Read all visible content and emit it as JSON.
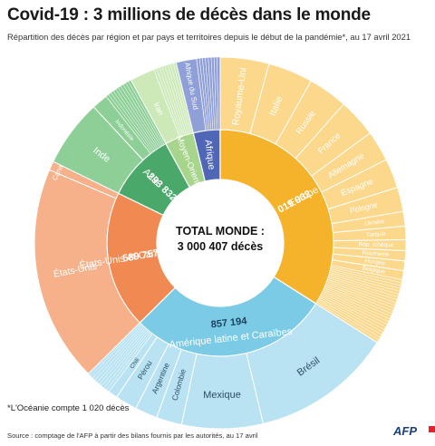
{
  "header": {
    "title": "Covid-19 : 3 millions de décès dans le monde",
    "subtitle": "Répartition des décès par région et par pays et territoires depuis le début de la pandémie*, au 17 avril 2021"
  },
  "footer": {
    "note": "*L'Océanie compte 1 020 décès",
    "source": "Source : comptage de l'AFP à partir des bilans fournis par les autorités, au 17 avril",
    "logo": "AFP"
  },
  "colors": {
    "europe_inner": "#f5b32b",
    "europe_outer": "#fcd88c",
    "latam_inner": "#7ccbe6",
    "latam_outer": "#b9e3f3",
    "usca_inner": "#f08a52",
    "usca_outer": "#f6b08a",
    "asia_inner": "#4aa86a",
    "asia_outer": "#8ecf98",
    "mideast_inner": "#a6d58b",
    "mideast_outer": "#cde9b8",
    "africa_inner": "#5067b8",
    "africa_outer": "#8f9fd8",
    "background": "#ffffff"
  },
  "chart_data": {
    "type": "sunburst",
    "center_label": [
      "TOTAL MONDE :",
      "3 000 407 décès"
    ],
    "total": 3000407,
    "regions": [
      {
        "name": "Europe",
        "value_label": "1 019 932",
        "value": 1019932,
        "key": "europe",
        "countries": [
          {
            "name": "Royaume-Uni",
            "value": 127260
          },
          {
            "name": "Italie",
            "value": 116927
          },
          {
            "name": "Russie",
            "value": 103263
          },
          {
            "name": "France",
            "value": 100733
          },
          {
            "name": "Allemagne",
            "value": 79969
          },
          {
            "name": "Espagne",
            "value": 76981
          },
          {
            "name": "Pologne",
            "value": 63473
          },
          {
            "name": "Ukraine",
            "value": 37993
          },
          {
            "name": "Turquie",
            "value": 35031
          },
          {
            "name": "Rép. tchèque",
            "value": 28528
          },
          {
            "name": "Roumanie",
            "value": 26560
          },
          {
            "name": "Hongrie",
            "value": 25305
          },
          {
            "name": "Belgique",
            "value": 23592
          },
          {
            "name": "",
            "value": 174317
          }
        ]
      },
      {
        "name": "Amérique latine et Caraïbes",
        "value_label": "857 194",
        "value": 857194,
        "key": "latam",
        "countries": [
          {
            "name": "Brésil",
            "value": 368749
          },
          {
            "name": "Mexique",
            "value": 211693
          },
          {
            "name": "Colombie",
            "value": 66819
          },
          {
            "name": "Argentine",
            "value": 58542
          },
          {
            "name": "Pérou",
            "value": 56797
          },
          {
            "name": "Chili",
            "value": 24772
          },
          {
            "name": "",
            "value": 69822
          }
        ]
      },
      {
        "name": "États-Unis et Canada",
        "value_label": "589 757",
        "value": 589757,
        "key": "usca",
        "countries": [
          {
            "name": "États-Unis",
            "value": 566224
          },
          {
            "name": "Canada",
            "value": 23533
          }
        ]
      },
      {
        "name": "Asie",
        "value_label": "293 832",
        "value": 293832,
        "key": "asia",
        "countries": [
          {
            "name": "Inde",
            "value": 175649
          },
          {
            "name": "Indonésie",
            "value": 42227
          },
          {
            "name": "",
            "value": 75956
          }
        ]
      },
      {
        "name": "Moyen-Orient",
        "value_label": "",
        "value": 125000,
        "key": "mideast",
        "countries": [
          {
            "name": "Iran",
            "value": 65359
          },
          {
            "name": "",
            "value": 59641
          }
        ]
      },
      {
        "name": "Afrique",
        "value_label": "",
        "value": 114000,
        "key": "africa",
        "countries": [
          {
            "name": "Afrique du Sud",
            "value": 53757
          },
          {
            "name": "",
            "value": 60243
          }
        ]
      }
    ]
  }
}
